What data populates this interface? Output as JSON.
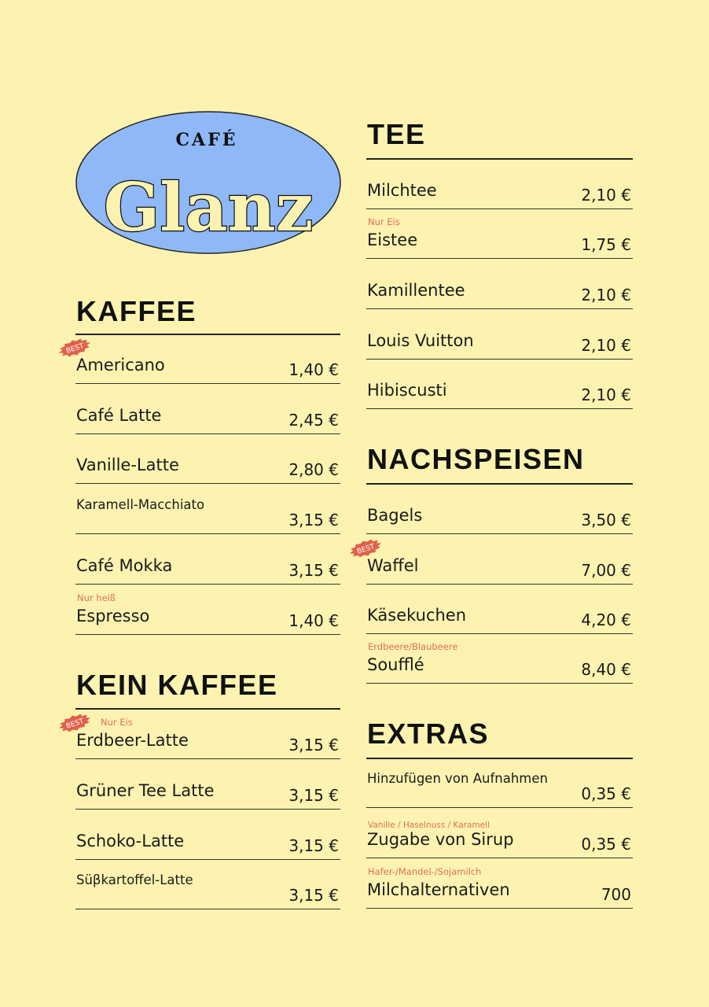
{
  "logo": {
    "top_text": "CAFÉ",
    "main_text": "Glanz",
    "oval_color": "#8fb8f8",
    "text_fill": "#fdf3b1"
  },
  "badge_label": "BEST",
  "badge_color": "#e0614a",
  "note_color": "#e0704f",
  "sections": [
    {
      "title": "KAFFEE",
      "items": [
        {
          "name": "Americano",
          "price": "1,40 €",
          "best": true
        },
        {
          "name": "Café Latte",
          "price": "2,45 €"
        },
        {
          "name": "Vanille-Latte",
          "price": "2,80 €"
        },
        {
          "name": "Karamell-Macchiato",
          "price": "3,15 €",
          "small": true
        },
        {
          "name": "Café Mokka",
          "price": "3,15 €"
        },
        {
          "name": "Espresso",
          "price": "1,40 €",
          "note": "Nur heiß"
        }
      ]
    },
    {
      "title": "KEIN KAFFEE",
      "items": [
        {
          "name": "Erdbeer-Latte",
          "price": "3,15 €",
          "best": true,
          "note": "Nur Eis"
        },
        {
          "name": "Grüner Tee Latte",
          "price": "3,15 €"
        },
        {
          "name": "Schoko-Latte",
          "price": "3,15 €"
        },
        {
          "name": "Süβkartoffel-Latte",
          "price": "3,15 €",
          "small": true
        }
      ]
    },
    {
      "title": "TEE",
      "items": [
        {
          "name": "Milchtee",
          "price": "2,10 €"
        },
        {
          "name": "Eistee",
          "price": "1,75 €",
          "note": "Nur Eis"
        },
        {
          "name": "Kamillentee",
          "price": "2,10 €"
        },
        {
          "name": "Louis Vuitton",
          "price": "2,10 €"
        },
        {
          "name": "Hibiscusti",
          "price": "2,10 €"
        }
      ]
    },
    {
      "title": "NACHSPEISEN",
      "items": [
        {
          "name": "Bagels",
          "price": "3,50 €"
        },
        {
          "name": "Waffel",
          "price": "7,00 €",
          "best": true
        },
        {
          "name": "Käsekuchen",
          "price": "4,20 €"
        },
        {
          "name": "Soufflé",
          "price": "8,40 €",
          "note": "Erdbeere/Blaubeere"
        }
      ]
    },
    {
      "title": "EXTRAS",
      "items": [
        {
          "name": "Hinzufügen von Aufnahmen",
          "price": "0,35 €",
          "small": true
        },
        {
          "name": "Zugabe von Sirup",
          "price": "0,35 €",
          "note": "Vanille / Haselnuss / Karamell",
          "tight": true
        },
        {
          "name": "Milchalternativen",
          "price": "700",
          "note": "Hafer-/Mandel-/Sojamilch"
        }
      ]
    }
  ]
}
